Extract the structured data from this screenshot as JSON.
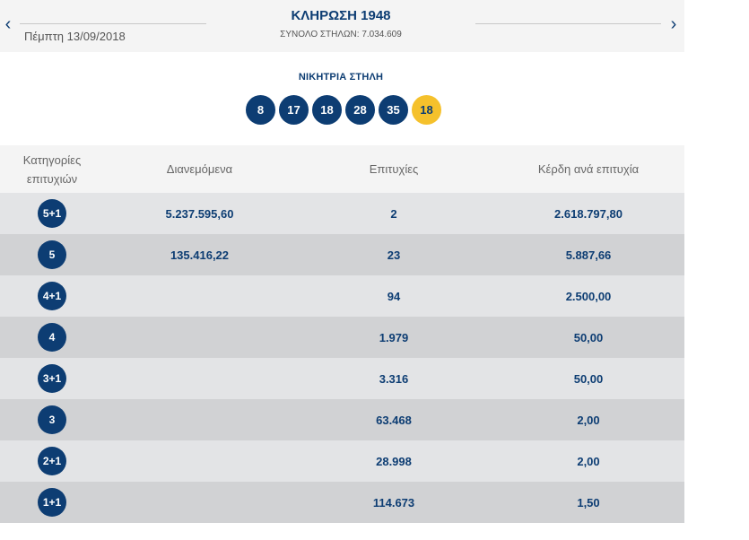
{
  "header": {
    "prev_icon": "chevron-left-icon",
    "next_icon": "chevron-right-icon",
    "date": "Πέμπτη 13/09/2018",
    "draw_title": "ΚΛΗΡΩΣΗ 1948",
    "total_columns": "ΣΥΝΟΛΟ ΣΤΗΛΩΝ: 7.034.609"
  },
  "winning": {
    "label": "ΝΙΚΗΤΡΙΑ ΣΤΗΛΗ",
    "numbers": [
      "8",
      "17",
      "18",
      "28",
      "35"
    ],
    "joker": "18"
  },
  "table": {
    "headers": {
      "category_line1": "Κατηγορίες",
      "category_line2": "επιτυχιών",
      "distributed": "Διανεμόμενα",
      "winners": "Επιτυχίες",
      "prize": "Κέρδη ανά επιτυχία"
    },
    "rows": [
      {
        "category": "5+1",
        "distributed": "5.237.595,60",
        "winners": "2",
        "prize": "2.618.797,80"
      },
      {
        "category": "5",
        "distributed": "135.416,22",
        "winners": "23",
        "prize": "5.887,66"
      },
      {
        "category": "4+1",
        "distributed": "",
        "winners": "94",
        "prize": "2.500,00"
      },
      {
        "category": "4",
        "distributed": "",
        "winners": "1.979",
        "prize": "50,00"
      },
      {
        "category": "3+1",
        "distributed": "",
        "winners": "3.316",
        "prize": "50,00"
      },
      {
        "category": "3",
        "distributed": "",
        "winners": "63.468",
        "prize": "2,00"
      },
      {
        "category": "2+1",
        "distributed": "",
        "winners": "28.998",
        "prize": "2,00"
      },
      {
        "category": "1+1",
        "distributed": "",
        "winners": "114.673",
        "prize": "1,50"
      }
    ]
  },
  "colors": {
    "brand_blue": "#0d3d73",
    "joker_yellow": "#f5c12c",
    "row_light": "#e3e4e6",
    "row_dark": "#d1d2d4"
  }
}
